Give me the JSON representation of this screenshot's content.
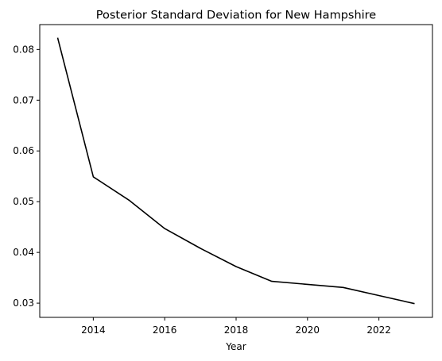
{
  "chart_data": {
    "type": "line",
    "title": "Posterior Standard Deviation for New Hampshire",
    "xlabel": "Year",
    "ylabel": "",
    "x": [
      2013,
      2014,
      2015,
      2016,
      2017,
      2018,
      2019,
      2020,
      2021,
      2022,
      2023
    ],
    "series": [
      {
        "values": [
          0.0823,
          0.0549,
          0.0503,
          0.0447,
          0.0408,
          0.0372,
          0.0343,
          0.0337,
          0.0331,
          0.0315,
          0.0299
        ]
      }
    ],
    "xlim": [
      2012.5,
      2023.5
    ],
    "ylim": [
      0.0272,
      0.0849
    ],
    "xticks": [
      2014,
      2016,
      2018,
      2020,
      2022
    ],
    "yticks": [
      0.03,
      0.04,
      0.05,
      0.06,
      0.07,
      0.08
    ],
    "xtick_labels": [
      "2014",
      "2016",
      "2018",
      "2020",
      "2022"
    ],
    "ytick_labels": [
      "0.03",
      "0.04",
      "0.05",
      "0.06",
      "0.07",
      "0.08"
    ],
    "line_color": "#000000",
    "grid": false,
    "legend": "none"
  }
}
